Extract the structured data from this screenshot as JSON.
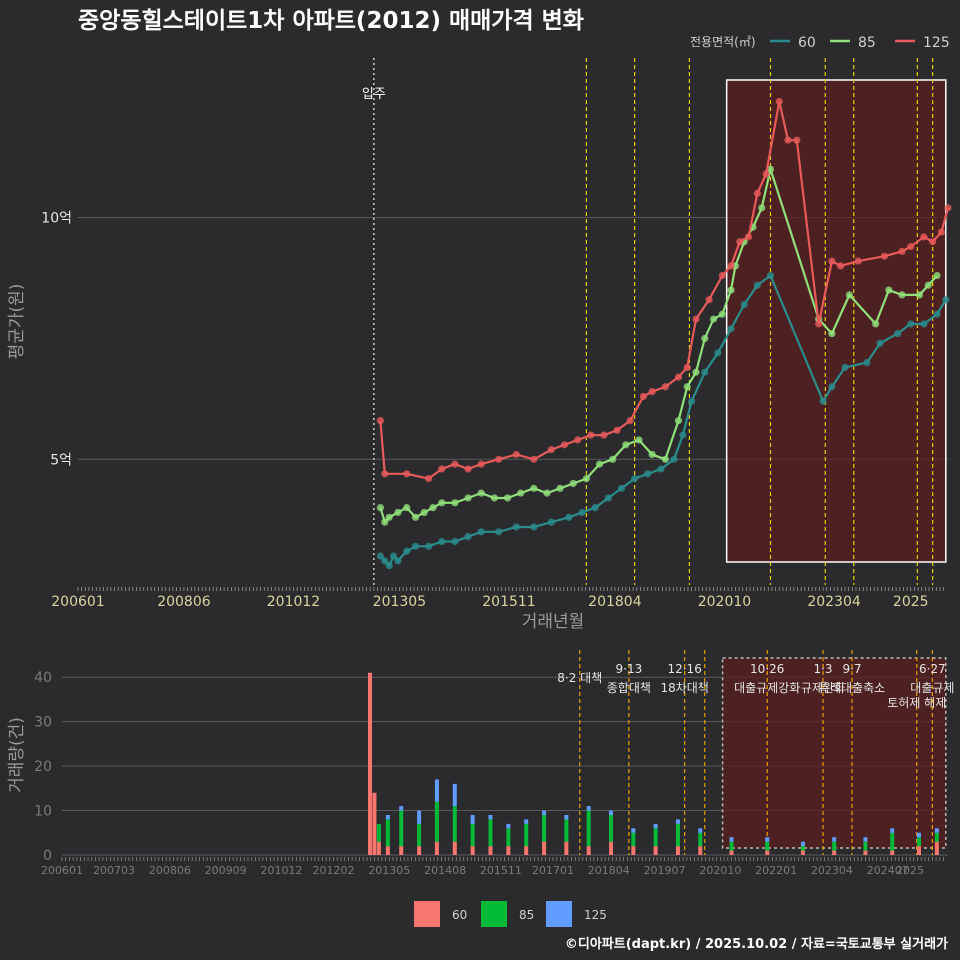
{
  "title": "중앙동힐스테이트1차 아파트(2012) 매매가격 변화",
  "footer": "©디아파트(dapt.kr) / 2025.10.02 / 자료=국토교통부 실거래가",
  "colors": {
    "bg": "#2b2b2d",
    "grid": "#5a5a5e",
    "tick": "#d9d3a0",
    "s60": "#2a8c8c",
    "s85": "#90e07a",
    "s125": "#e85a5a",
    "b60": "#f8766d",
    "b85": "#00ba38",
    "b125": "#619cff",
    "policy": "#e8d000",
    "highlight": "#5a1e1e"
  },
  "chart_data": [
    {
      "type": "line",
      "xlabel": "거래년월",
      "ylabel": "평균가(원)",
      "x_ticks": [
        "200601",
        "200806",
        "201012",
        "201305",
        "201511",
        "201804",
        "202010",
        "202304",
        "2025"
      ],
      "y_ticks": [
        {
          "value": 5,
          "label": "5억"
        },
        {
          "value": 10,
          "label": "10억"
        }
      ],
      "xlim": [
        2006.0,
        2025.85
      ],
      "ylim": [
        2.4,
        13.3
      ],
      "legend": {
        "title": "전용면적(㎡)",
        "position": "top-right",
        "items": [
          "60",
          "85",
          "125"
        ]
      },
      "annotation": {
        "label": "입주",
        "x": 2012.75
      },
      "policy_lines": [
        2017.6,
        2018.7,
        2019.95,
        2021.8,
        2023.05,
        2023.7,
        2025.15,
        2025.5
      ],
      "highlight_range": [
        2020.8,
        2025.8
      ],
      "series": [
        {
          "name": "60",
          "x": [
            2012.9,
            2013.0,
            2013.1,
            2013.2,
            2013.3,
            2013.5,
            2013.7,
            2014.0,
            2014.3,
            2014.6,
            2014.9,
            2015.2,
            2015.6,
            2016.0,
            2016.4,
            2016.8,
            2017.2,
            2017.5,
            2017.8,
            2018.1,
            2018.4,
            2018.7,
            2019.0,
            2019.3,
            2019.6,
            2019.8,
            2020.0,
            2020.3,
            2020.6,
            2020.9,
            2021.2,
            2021.5,
            2021.8,
            2023.0,
            2023.2,
            2023.5,
            2024.0,
            2024.3,
            2024.7,
            2025.0,
            2025.3,
            2025.6,
            2025.8
          ],
          "y": [
            3.0,
            2.9,
            2.8,
            3.0,
            2.9,
            3.1,
            3.2,
            3.2,
            3.3,
            3.3,
            3.4,
            3.5,
            3.5,
            3.6,
            3.6,
            3.7,
            3.8,
            3.9,
            4.0,
            4.2,
            4.4,
            4.6,
            4.7,
            4.8,
            5.0,
            5.5,
            6.2,
            6.8,
            7.2,
            7.7,
            8.2,
            8.6,
            8.8,
            6.2,
            6.5,
            6.9,
            7.0,
            7.4,
            7.6,
            7.8,
            7.8,
            8.0,
            8.3
          ]
        },
        {
          "name": "85",
          "x": [
            2012.9,
            2013.0,
            2013.1,
            2013.3,
            2013.5,
            2013.7,
            2013.9,
            2014.1,
            2014.3,
            2014.6,
            2014.9,
            2015.2,
            2015.5,
            2015.8,
            2016.1,
            2016.4,
            2016.7,
            2017.0,
            2017.3,
            2017.6,
            2017.9,
            2018.2,
            2018.5,
            2018.8,
            2019.1,
            2019.4,
            2019.7,
            2019.9,
            2020.1,
            2020.3,
            2020.5,
            2020.7,
            2020.9,
            2021.0,
            2021.2,
            2021.4,
            2021.6,
            2021.8,
            2022.9,
            2023.2,
            2023.6,
            2024.2,
            2024.5,
            2024.8,
            2025.2,
            2025.4,
            2025.6
          ],
          "y": [
            4.0,
            3.7,
            3.8,
            3.9,
            4.0,
            3.8,
            3.9,
            4.0,
            4.1,
            4.1,
            4.2,
            4.3,
            4.2,
            4.2,
            4.3,
            4.4,
            4.3,
            4.4,
            4.5,
            4.6,
            4.9,
            5.0,
            5.3,
            5.4,
            5.1,
            5.0,
            5.8,
            6.5,
            6.8,
            7.5,
            7.9,
            8.0,
            8.5,
            9.0,
            9.5,
            9.8,
            10.2,
            11.0,
            7.9,
            7.6,
            8.4,
            7.8,
            8.5,
            8.4,
            8.4,
            8.6,
            8.8
          ]
        },
        {
          "name": "125",
          "x": [
            2012.9,
            2013.0,
            2013.5,
            2014.0,
            2014.3,
            2014.6,
            2014.9,
            2015.2,
            2015.6,
            2016.0,
            2016.4,
            2016.8,
            2017.1,
            2017.4,
            2017.7,
            2018.0,
            2018.3,
            2018.6,
            2018.9,
            2019.1,
            2019.4,
            2019.7,
            2019.9,
            2020.1,
            2020.4,
            2020.7,
            2020.9,
            2021.1,
            2021.3,
            2021.5,
            2021.7,
            2022.0,
            2022.2,
            2022.4,
            2022.9,
            2023.2,
            2023.4,
            2023.8,
            2024.4,
            2024.8,
            2025.0,
            2025.3,
            2025.5,
            2025.7,
            2025.85
          ],
          "y": [
            5.8,
            4.7,
            4.7,
            4.6,
            4.8,
            4.9,
            4.8,
            4.9,
            5.0,
            5.1,
            5.0,
            5.2,
            5.3,
            5.4,
            5.5,
            5.5,
            5.6,
            5.8,
            6.3,
            6.4,
            6.5,
            6.7,
            6.9,
            7.9,
            8.3,
            8.8,
            9.0,
            9.5,
            9.6,
            10.5,
            10.9,
            12.4,
            11.6,
            11.6,
            7.8,
            9.1,
            9.0,
            9.1,
            9.2,
            9.3,
            9.4,
            9.6,
            9.5,
            9.7,
            10.2
          ]
        }
      ]
    },
    {
      "type": "bar",
      "stacked": true,
      "ylabel": "거래량(건)",
      "x_ticks": [
        "200601",
        "200703",
        "200806",
        "200909",
        "201012",
        "201202",
        "201305",
        "201408",
        "201511",
        "201701",
        "201804",
        "201907",
        "202010",
        "202201",
        "202304",
        "202407",
        "2025"
      ],
      "y_ticks": [
        0,
        10,
        20,
        30,
        40
      ],
      "xlim": [
        2006.0,
        2025.85
      ],
      "ylim": [
        0,
        45
      ],
      "legend": {
        "position": "bottom",
        "items": [
          "60",
          "85",
          "125"
        ]
      },
      "highlight_range": [
        2020.8,
        2025.8
      ],
      "policies": [
        {
          "x": 2017.6,
          "date": "8·2 대책",
          "label": ""
        },
        {
          "x": 2018.7,
          "date": "9·13",
          "label": "종합대책"
        },
        {
          "x": 2019.95,
          "date": "12·16",
          "label": "18차대책"
        },
        {
          "x": 2020.4,
          "date": "",
          "label": ""
        },
        {
          "x": 2021.8,
          "date": "10·26",
          "label": "대출규제강화"
        },
        {
          "x": 2023.05,
          "date": "1·3",
          "label": "규제완화"
        },
        {
          "x": 2023.7,
          "date": "9·7",
          "label": "특례대출축소"
        },
        {
          "x": 2025.15,
          "date": "",
          "label": "토허제 해제"
        },
        {
          "x": 2025.5,
          "date": "6·27",
          "label": "대출규제"
        }
      ],
      "series": [
        {
          "name": "60",
          "x": [
            2012.9,
            2013.0,
            2013.1,
            2013.3,
            2013.6,
            2014.0,
            2014.4,
            2014.8,
            2015.2,
            2015.6,
            2016.0,
            2016.4,
            2016.8,
            2017.3,
            2017.8,
            2018.3,
            2018.8,
            2019.3,
            2019.8,
            2020.3,
            2021.0,
            2021.8,
            2022.6,
            2023.3,
            2024.0,
            2024.6,
            2025.2,
            2025.6
          ],
          "values": [
            41,
            14,
            3,
            2,
            2,
            2,
            3,
            3,
            2,
            2,
            2,
            2,
            3,
            3,
            2,
            3,
            2,
            2,
            2,
            2,
            1,
            1,
            1,
            1,
            1,
            1,
            2,
            3
          ]
        },
        {
          "name": "85",
          "x": [
            2012.9,
            2013.0,
            2013.1,
            2013.3,
            2013.6,
            2014.0,
            2014.4,
            2014.8,
            2015.2,
            2015.6,
            2016.0,
            2016.4,
            2016.8,
            2017.3,
            2017.8,
            2018.3,
            2018.8,
            2019.3,
            2019.8,
            2020.3,
            2021.0,
            2021.8,
            2022.6,
            2023.3,
            2024.0,
            2024.6,
            2025.2,
            2025.6
          ],
          "values": [
            0,
            0,
            4,
            6,
            8,
            5,
            9,
            8,
            5,
            6,
            4,
            5,
            6,
            5,
            8,
            6,
            3,
            4,
            5,
            3,
            2,
            2,
            1,
            2,
            2,
            4,
            2,
            2
          ]
        },
        {
          "name": "125",
          "x": [
            2012.9,
            2013.0,
            2013.1,
            2013.3,
            2013.6,
            2014.0,
            2014.4,
            2014.8,
            2015.2,
            2015.6,
            2016.0,
            2016.4,
            2016.8,
            2017.3,
            2017.8,
            2018.3,
            2018.8,
            2019.3,
            2019.8,
            2020.3,
            2021.0,
            2021.8,
            2022.6,
            2023.3,
            2024.0,
            2024.6,
            2025.2,
            2025.6
          ],
          "values": [
            0,
            0,
            0,
            1,
            1,
            3,
            5,
            5,
            2,
            1,
            1,
            1,
            1,
            1,
            1,
            1,
            1,
            1,
            1,
            1,
            1,
            1,
            1,
            1,
            1,
            1,
            1,
            1
          ]
        }
      ]
    }
  ]
}
